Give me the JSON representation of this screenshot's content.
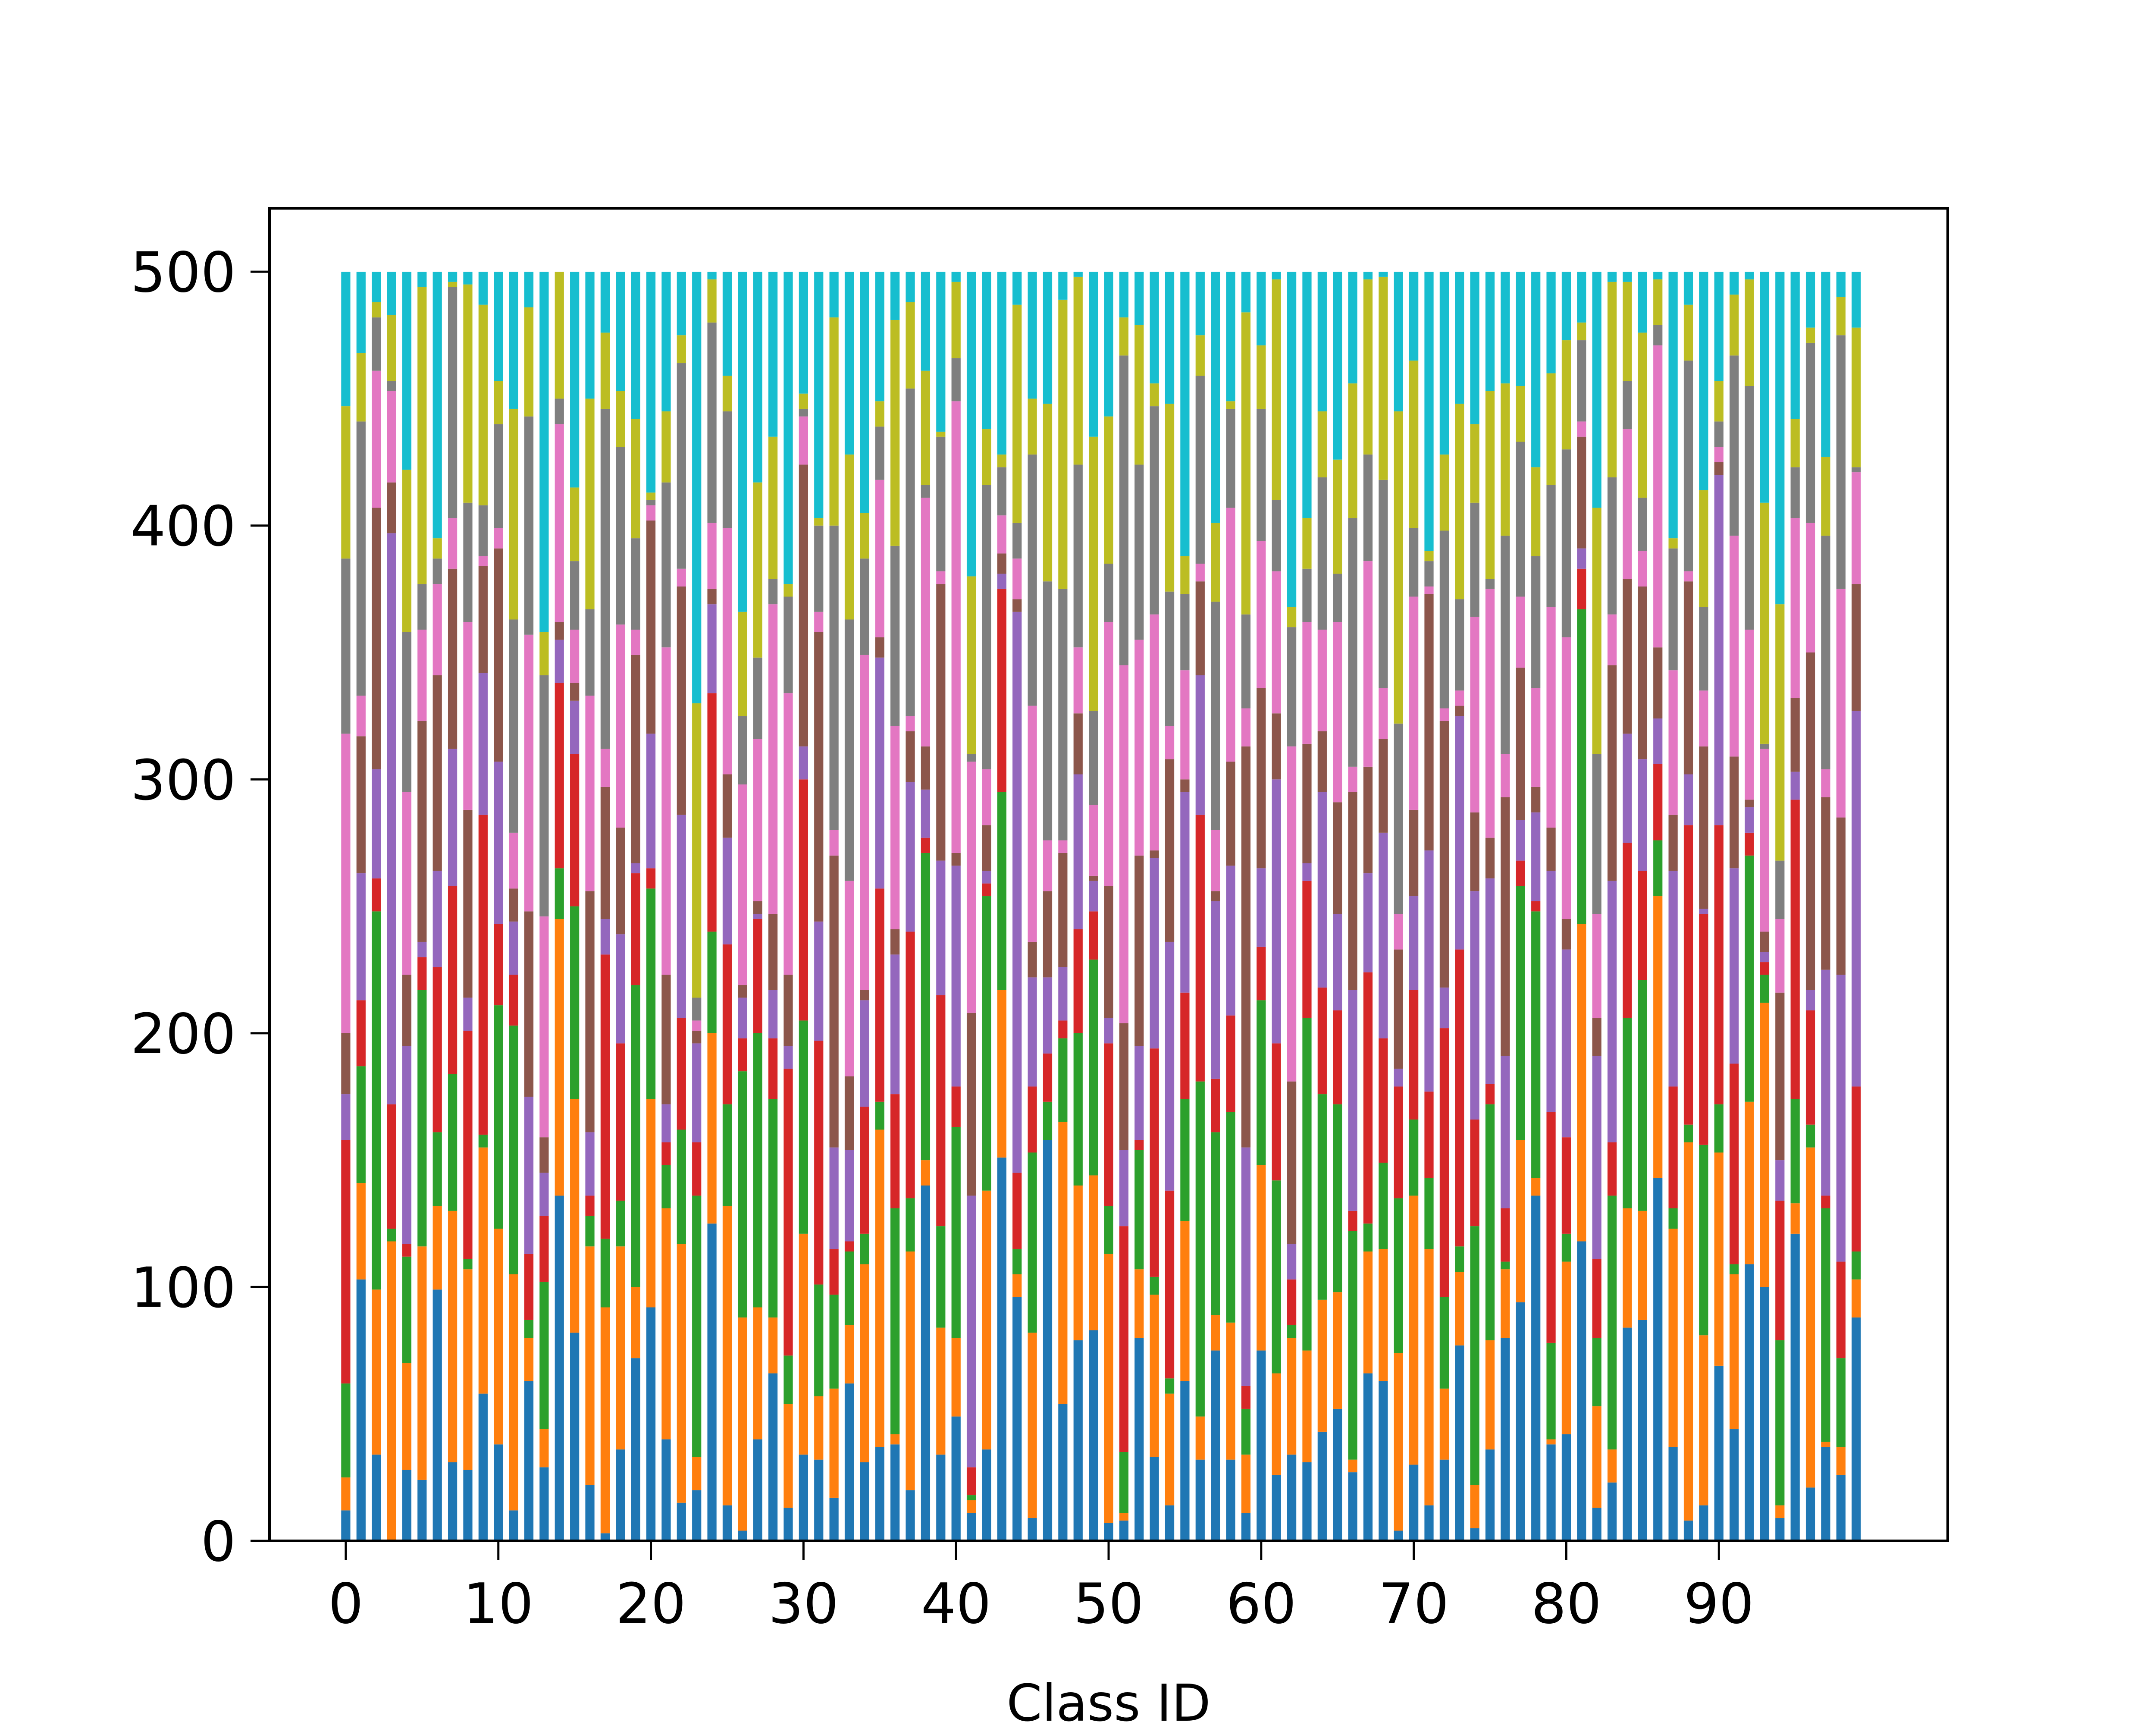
{
  "chart_data": {
    "type": "bar",
    "stacked": true,
    "num_classes": 100,
    "bar_total": 500,
    "xlabel": "Class ID",
    "ylabel": "",
    "title": "",
    "xlim": [
      -5,
      105
    ],
    "ylim": [
      0,
      525
    ],
    "xticks": [
      0,
      10,
      20,
      30,
      40,
      50,
      60,
      70,
      80,
      90
    ],
    "yticks": [
      0,
      100,
      200,
      300,
      400,
      500
    ],
    "legend": "none",
    "grid": false,
    "segments_shown": 10,
    "series_colors": [
      "#1f77b4",
      "#ff7f0e",
      "#2ca02c",
      "#d62728",
      "#9467bd",
      "#8c564b",
      "#e377c2",
      "#7f7f7f",
      "#bcbd22",
      "#17becf"
    ],
    "sample_cumulative_boundaries": {
      "class_0": [
        12,
        25,
        62,
        158,
        176,
        200,
        318,
        387,
        447,
        500
      ],
      "class_3": [
        0,
        118,
        123,
        172,
        397,
        417,
        453,
        457,
        483,
        500
      ],
      "class_14": [
        136,
        245,
        265,
        338,
        355,
        362,
        440,
        450,
        500,
        500
      ],
      "class_46": [
        158,
        158,
        173,
        192,
        222,
        256,
        276,
        378,
        448,
        500
      ],
      "class_99": [
        88,
        103,
        114,
        179,
        327,
        377,
        421,
        423,
        478,
        500
      ]
    }
  }
}
